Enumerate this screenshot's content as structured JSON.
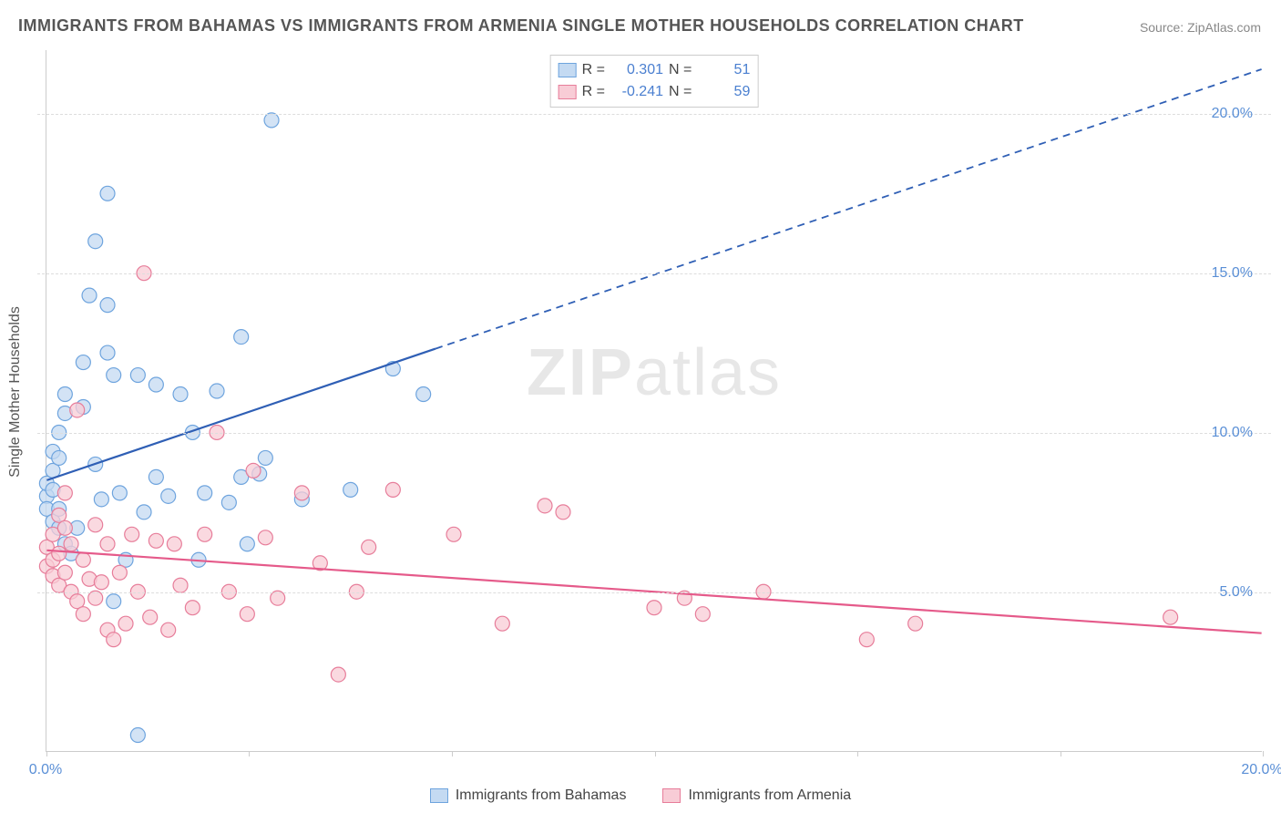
{
  "title": "IMMIGRANTS FROM BAHAMAS VS IMMIGRANTS FROM ARMENIA SINGLE MOTHER HOUSEHOLDS CORRELATION CHART",
  "source_label": "Source: ZipAtlas.com",
  "y_axis_label": "Single Mother Households",
  "watermark_bold": "ZIP",
  "watermark_light": "atlas",
  "chart": {
    "type": "scatter",
    "xlim": [
      0,
      20
    ],
    "ylim": [
      0,
      22
    ],
    "x_ticks": [
      0,
      3.33,
      6.67,
      10,
      13.33,
      16.67,
      20
    ],
    "x_tick_labels": [
      "0.0%",
      "",
      "",
      "",
      "",
      "",
      "20.0%"
    ],
    "y_grid": [
      5,
      10,
      15,
      20
    ],
    "y_tick_labels": [
      "5.0%",
      "10.0%",
      "15.0%",
      "20.0%"
    ],
    "background_color": "#ffffff",
    "grid_color": "#dddddd",
    "axis_color": "#cccccc",
    "marker_radius": 8,
    "marker_stroke_width": 1.2,
    "series": [
      {
        "name": "Immigrants from Bahamas",
        "fill": "#c4daf2",
        "stroke": "#6ea4de",
        "line_color": "#2f5fb5",
        "r_value": "0.301",
        "n_value": "51",
        "trend": {
          "x1": 0,
          "y1": 8.5,
          "x2": 20,
          "y2": 21.4,
          "solid_until_x": 6.4
        },
        "points": [
          [
            0.0,
            8.0
          ],
          [
            0.0,
            8.4
          ],
          [
            0.0,
            7.6
          ],
          [
            0.1,
            8.2
          ],
          [
            0.1,
            8.8
          ],
          [
            0.1,
            9.4
          ],
          [
            0.1,
            7.2
          ],
          [
            0.2,
            10.0
          ],
          [
            0.2,
            9.2
          ],
          [
            0.2,
            7.0
          ],
          [
            0.2,
            7.6
          ],
          [
            0.3,
            10.6
          ],
          [
            0.3,
            11.2
          ],
          [
            0.3,
            6.5
          ],
          [
            0.4,
            6.2
          ],
          [
            0.5,
            7.0
          ],
          [
            0.6,
            12.2
          ],
          [
            0.6,
            10.8
          ],
          [
            0.7,
            14.3
          ],
          [
            0.8,
            16.0
          ],
          [
            0.8,
            9.0
          ],
          [
            0.9,
            7.9
          ],
          [
            1.0,
            14.0
          ],
          [
            1.0,
            12.5
          ],
          [
            1.0,
            17.5
          ],
          [
            1.1,
            11.8
          ],
          [
            1.1,
            4.7
          ],
          [
            1.2,
            8.1
          ],
          [
            1.3,
            6.0
          ],
          [
            1.5,
            11.8
          ],
          [
            1.5,
            0.5
          ],
          [
            1.6,
            7.5
          ],
          [
            1.8,
            11.5
          ],
          [
            1.8,
            8.6
          ],
          [
            2.0,
            8.0
          ],
          [
            2.2,
            11.2
          ],
          [
            2.4,
            10.0
          ],
          [
            2.5,
            6.0
          ],
          [
            2.6,
            8.1
          ],
          [
            2.8,
            11.3
          ],
          [
            3.0,
            7.8
          ],
          [
            3.2,
            8.6
          ],
          [
            3.2,
            13.0
          ],
          [
            3.3,
            6.5
          ],
          [
            3.5,
            8.7
          ],
          [
            3.6,
            9.2
          ],
          [
            3.7,
            19.8
          ],
          [
            4.2,
            7.9
          ],
          [
            5.0,
            8.2
          ],
          [
            5.7,
            12.0
          ],
          [
            6.2,
            11.2
          ]
        ]
      },
      {
        "name": "Immigrants from Armenia",
        "fill": "#f8ccd6",
        "stroke": "#e77d9a",
        "line_color": "#e55a8a",
        "r_value": "-0.241",
        "n_value": "59",
        "trend": {
          "x1": 0,
          "y1": 6.3,
          "x2": 20,
          "y2": 3.7,
          "solid_until_x": 20
        },
        "points": [
          [
            0.0,
            6.4
          ],
          [
            0.0,
            5.8
          ],
          [
            0.1,
            6.0
          ],
          [
            0.1,
            5.5
          ],
          [
            0.1,
            6.8
          ],
          [
            0.2,
            7.4
          ],
          [
            0.2,
            5.2
          ],
          [
            0.2,
            6.2
          ],
          [
            0.3,
            5.6
          ],
          [
            0.3,
            8.1
          ],
          [
            0.3,
            7.0
          ],
          [
            0.4,
            5.0
          ],
          [
            0.4,
            6.5
          ],
          [
            0.5,
            4.7
          ],
          [
            0.5,
            10.7
          ],
          [
            0.6,
            6.0
          ],
          [
            0.6,
            4.3
          ],
          [
            0.7,
            5.4
          ],
          [
            0.8,
            4.8
          ],
          [
            0.8,
            7.1
          ],
          [
            0.9,
            5.3
          ],
          [
            1.0,
            3.8
          ],
          [
            1.0,
            6.5
          ],
          [
            1.1,
            3.5
          ],
          [
            1.2,
            5.6
          ],
          [
            1.3,
            4.0
          ],
          [
            1.4,
            6.8
          ],
          [
            1.5,
            5.0
          ],
          [
            1.6,
            15.0
          ],
          [
            1.7,
            4.2
          ],
          [
            1.8,
            6.6
          ],
          [
            2.0,
            3.8
          ],
          [
            2.1,
            6.5
          ],
          [
            2.2,
            5.2
          ],
          [
            2.4,
            4.5
          ],
          [
            2.6,
            6.8
          ],
          [
            2.8,
            10.0
          ],
          [
            3.0,
            5.0
          ],
          [
            3.3,
            4.3
          ],
          [
            3.4,
            8.8
          ],
          [
            3.6,
            6.7
          ],
          [
            3.8,
            4.8
          ],
          [
            4.2,
            8.1
          ],
          [
            4.5,
            5.9
          ],
          [
            4.8,
            2.4
          ],
          [
            5.1,
            5.0
          ],
          [
            5.3,
            6.4
          ],
          [
            5.7,
            8.2
          ],
          [
            6.7,
            6.8
          ],
          [
            7.5,
            4.0
          ],
          [
            8.2,
            7.7
          ],
          [
            8.5,
            7.5
          ],
          [
            10.0,
            4.5
          ],
          [
            10.5,
            4.8
          ],
          [
            10.8,
            4.3
          ],
          [
            11.8,
            5.0
          ],
          [
            13.5,
            3.5
          ],
          [
            14.3,
            4.0
          ],
          [
            18.5,
            4.2
          ]
        ]
      }
    ]
  },
  "legend_top": {
    "r_label": "R  =",
    "n_label": "N  ="
  },
  "title_fontsize": 18,
  "label_fontsize": 16
}
